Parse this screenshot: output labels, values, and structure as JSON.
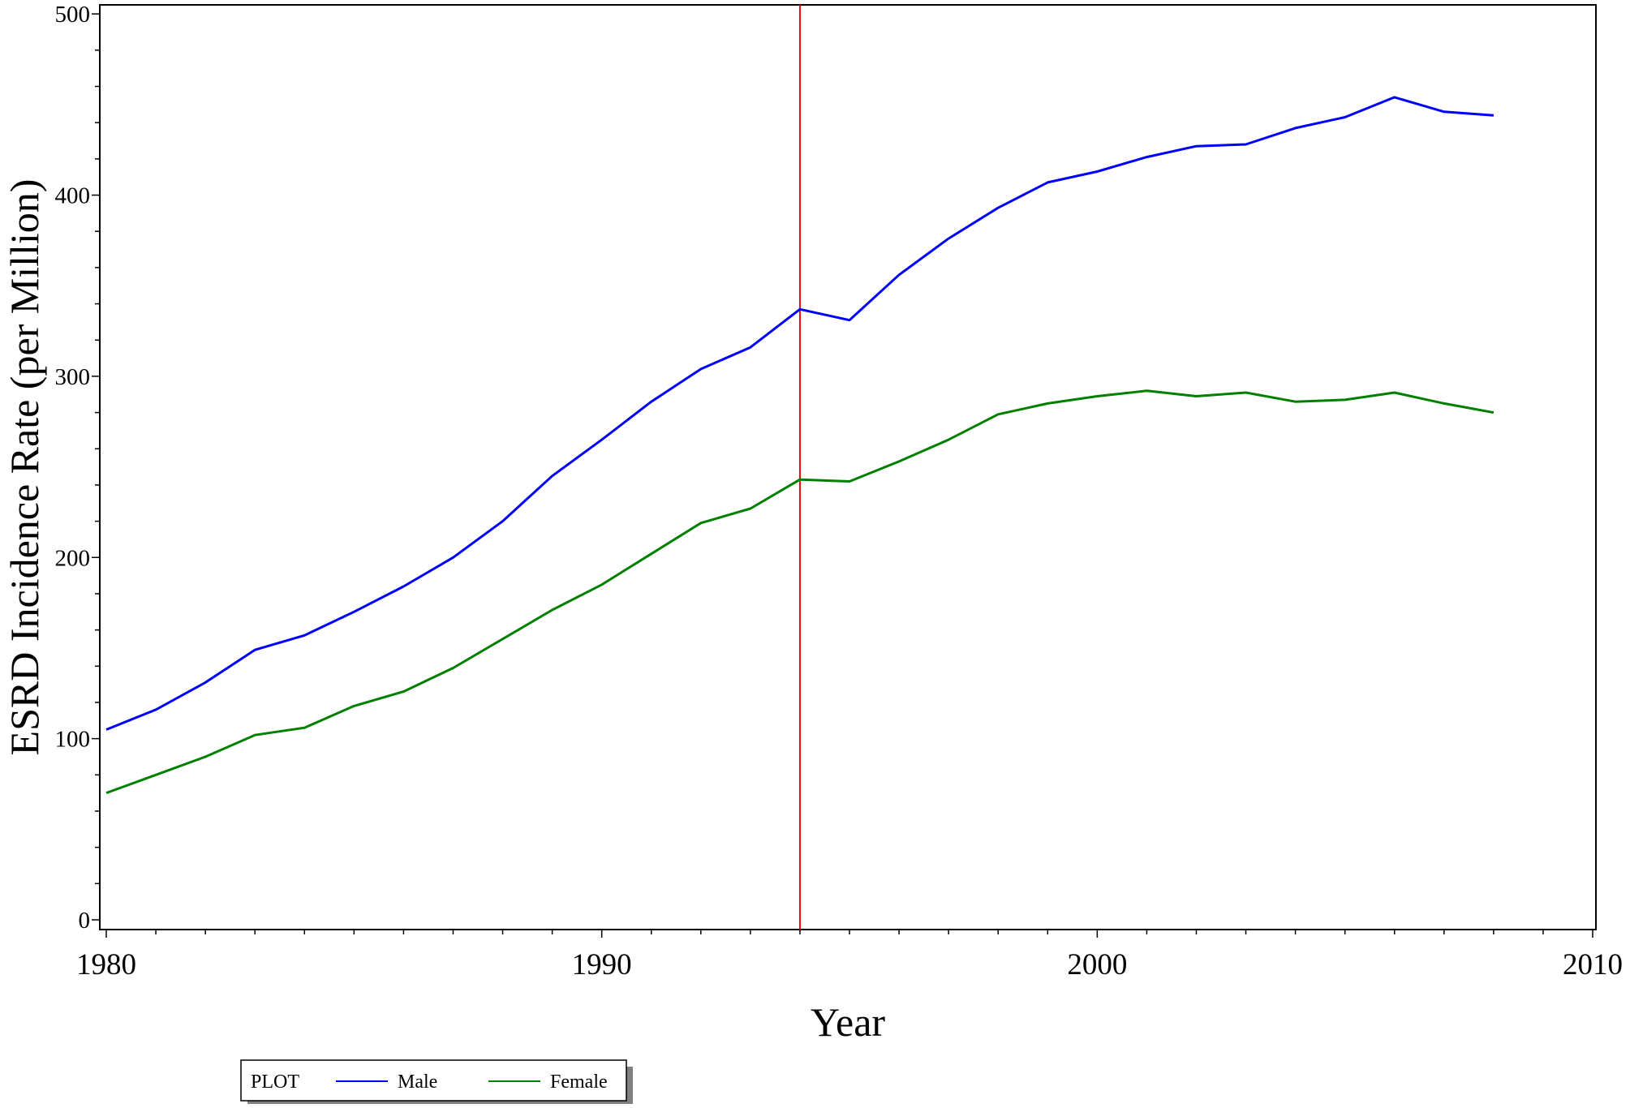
{
  "chart_data": {
    "type": "line",
    "title": "",
    "xlabel": "Year",
    "ylabel": "ESRD Incidence Rate (per Million)",
    "xlim": [
      1980,
      2010
    ],
    "ylim": [
      0,
      505
    ],
    "x_ticks": [
      "1980",
      "1990",
      "2000",
      "2010"
    ],
    "y_ticks": [
      "0",
      "100",
      "200",
      "300",
      "400",
      "500"
    ],
    "reference_line": {
      "x": 1994,
      "color": "#ff0000"
    },
    "legend": {
      "title": "PLOT",
      "position": "bottom-left"
    },
    "x": [
      1980,
      1981,
      1982,
      1983,
      1984,
      1985,
      1986,
      1987,
      1988,
      1989,
      1990,
      1991,
      1992,
      1993,
      1994,
      1995,
      1996,
      1997,
      1998,
      1999,
      2000,
      2001,
      2002,
      2003,
      2004,
      2005,
      2006,
      2007,
      2008
    ],
    "series": [
      {
        "name": "Male",
        "color": "#0000ff",
        "values": [
          105,
          116,
          131,
          149,
          157,
          170,
          184,
          200,
          220,
          245,
          265,
          286,
          304,
          316,
          337,
          331,
          356,
          376,
          393,
          407,
          413,
          421,
          427,
          428,
          437,
          443,
          454,
          446,
          444
        ]
      },
      {
        "name": "Female",
        "color": "#008000",
        "values": [
          70,
          80,
          90,
          102,
          106,
          118,
          126,
          139,
          155,
          171,
          185,
          202,
          219,
          227,
          243,
          242,
          253,
          265,
          279,
          285,
          289,
          292,
          289,
          291,
          286,
          287,
          291,
          285,
          280
        ]
      }
    ],
    "grid": false
  }
}
